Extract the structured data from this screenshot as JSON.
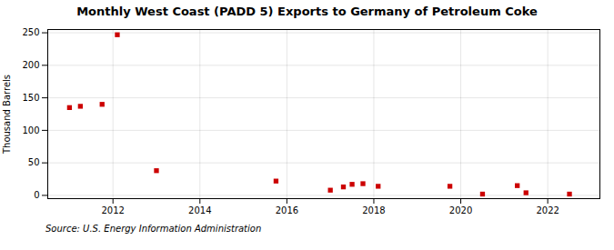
{
  "chart_data": {
    "type": "scatter",
    "title": "Monthly West Coast (PADD 5) Exports to Germany of Petroleum Coke",
    "ylabel": "Thousand Barrels",
    "source": "Source: U.S. Energy Information Administration",
    "x": [
      2011.0,
      2011.25,
      2011.75,
      2012.1,
      2013.0,
      2015.75,
      2017.0,
      2017.3,
      2017.5,
      2017.75,
      2018.1,
      2019.75,
      2020.5,
      2021.3,
      2021.5,
      2022.5
    ],
    "values": [
      135,
      137,
      140,
      247,
      38,
      22,
      8,
      13,
      17,
      18,
      14,
      14,
      2,
      15,
      4,
      2
    ],
    "color": "#cc0000",
    "marker": "square",
    "xlim": [
      2010.5,
      2023.2
    ],
    "ylim": [
      -5,
      255
    ],
    "xticks": [
      2012,
      2014,
      2016,
      2018,
      2020,
      2022
    ],
    "yticks": [
      0,
      50,
      100,
      150,
      200,
      250
    ],
    "grid": true
  }
}
